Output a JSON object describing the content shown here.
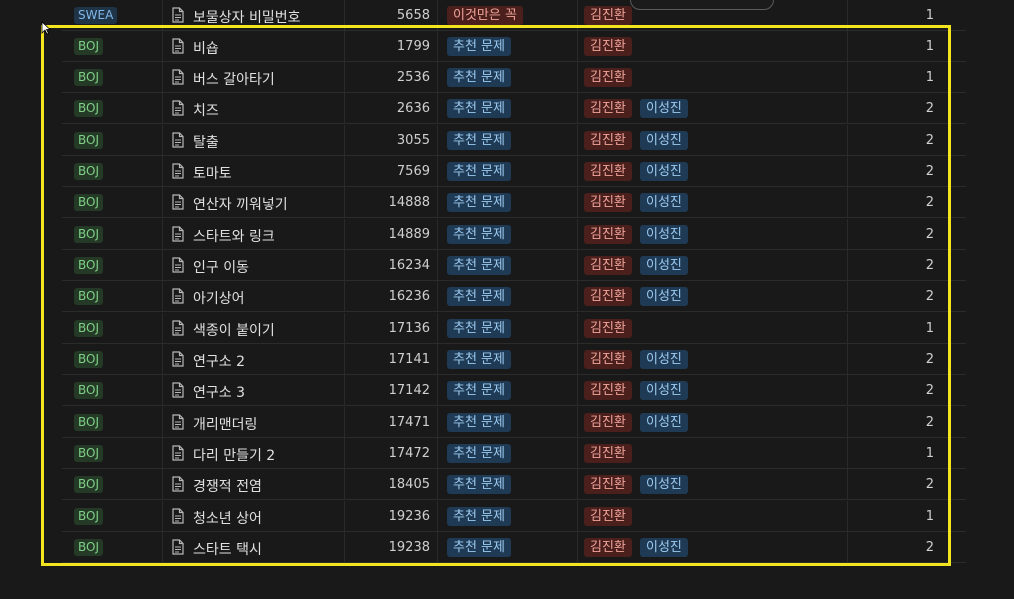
{
  "rows": [
    {
      "site": "SWEA",
      "title": "보물상자 비밀번호",
      "number": "5658",
      "category": "이것만은 꼭",
      "people": [
        "김진환"
      ],
      "count": "1"
    },
    {
      "site": "BOJ",
      "title": "비숍",
      "number": "1799",
      "category": "추천 문제",
      "people": [
        "김진환"
      ],
      "count": "1"
    },
    {
      "site": "BOJ",
      "title": "버스 갈아타기",
      "number": "2536",
      "category": "추천 문제",
      "people": [
        "김진환"
      ],
      "count": "1"
    },
    {
      "site": "BOJ",
      "title": "치즈",
      "number": "2636",
      "category": "추천 문제",
      "people": [
        "김진환",
        "이성진"
      ],
      "count": "2"
    },
    {
      "site": "BOJ",
      "title": "탈출",
      "number": "3055",
      "category": "추천 문제",
      "people": [
        "김진환",
        "이성진"
      ],
      "count": "2"
    },
    {
      "site": "BOJ",
      "title": "토마토",
      "number": "7569",
      "category": "추천 문제",
      "people": [
        "김진환",
        "이성진"
      ],
      "count": "2"
    },
    {
      "site": "BOJ",
      "title": "연산자 끼워넣기",
      "number": "14888",
      "category": "추천 문제",
      "people": [
        "김진환",
        "이성진"
      ],
      "count": "2"
    },
    {
      "site": "BOJ",
      "title": "스타트와 링크",
      "number": "14889",
      "category": "추천 문제",
      "people": [
        "김진환",
        "이성진"
      ],
      "count": "2"
    },
    {
      "site": "BOJ",
      "title": "인구 이동",
      "number": "16234",
      "category": "추천 문제",
      "people": [
        "김진환",
        "이성진"
      ],
      "count": "2"
    },
    {
      "site": "BOJ",
      "title": "아기상어",
      "number": "16236",
      "category": "추천 문제",
      "people": [
        "김진환",
        "이성진"
      ],
      "count": "2"
    },
    {
      "site": "BOJ",
      "title": "색종이 붙이기",
      "number": "17136",
      "category": "추천 문제",
      "people": [
        "김진환"
      ],
      "count": "1"
    },
    {
      "site": "BOJ",
      "title": "연구소 2",
      "number": "17141",
      "category": "추천 문제",
      "people": [
        "김진환",
        "이성진"
      ],
      "count": "2"
    },
    {
      "site": "BOJ",
      "title": "연구소 3",
      "number": "17142",
      "category": "추천 문제",
      "people": [
        "김진환",
        "이성진"
      ],
      "count": "2"
    },
    {
      "site": "BOJ",
      "title": "개리맨더링",
      "number": "17471",
      "category": "추천 문제",
      "people": [
        "김진환",
        "이성진"
      ],
      "count": "2"
    },
    {
      "site": "BOJ",
      "title": "다리 만들기 2",
      "number": "17472",
      "category": "추천 문제",
      "people": [
        "김진환"
      ],
      "count": "1"
    },
    {
      "site": "BOJ",
      "title": "경쟁적 전염",
      "number": "18405",
      "category": "추천 문제",
      "people": [
        "김진환",
        "이성진"
      ],
      "count": "2"
    },
    {
      "site": "BOJ",
      "title": "청소년 상어",
      "number": "19236",
      "category": "추천 문제",
      "people": [
        "김진환"
      ],
      "count": "1"
    },
    {
      "site": "BOJ",
      "title": "스타트 택시",
      "number": "19238",
      "category": "추천 문제",
      "people": [
        "김진환",
        "이성진"
      ],
      "count": "2"
    }
  ],
  "icons": {
    "page": "document-icon",
    "cursor": "mouse-pointer-icon"
  },
  "colors": {
    "highlight_border": "#f2e41e",
    "background": "#191919",
    "tag_blue": "#1f3a55",
    "tag_red": "#4a1f1c",
    "tag_green": "#243a26"
  }
}
